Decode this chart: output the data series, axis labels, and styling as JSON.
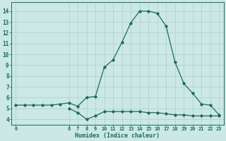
{
  "xlabel": "Humidex (Indice chaleur)",
  "ylabel": "",
  "bg_color": "#cce8e4",
  "line_color": "#1a6b60",
  "grid_color": "#afd4cf",
  "x_ticks": [
    0,
    6,
    7,
    8,
    9,
    10,
    11,
    12,
    13,
    14,
    15,
    16,
    17,
    18,
    19,
    20,
    21,
    22,
    23
  ],
  "y_ticks": [
    4,
    5,
    6,
    7,
    8,
    9,
    10,
    11,
    12,
    13,
    14
  ],
  "xlim": [
    -0.5,
    23.5
  ],
  "ylim": [
    3.5,
    14.8
  ],
  "line1_x": [
    0,
    1,
    2,
    3,
    4,
    5,
    6,
    7,
    8,
    9,
    10,
    11,
    12,
    13,
    14,
    15,
    16,
    17,
    18,
    19,
    20,
    21,
    22,
    23
  ],
  "line1_y": [
    5.3,
    5.3,
    5.3,
    5.3,
    5.3,
    5.4,
    5.5,
    5.2,
    6.0,
    6.1,
    8.8,
    9.5,
    11.1,
    12.9,
    14.0,
    14.0,
    13.8,
    12.6,
    9.3,
    7.3,
    6.4,
    5.4,
    5.3,
    4.4
  ],
  "line2_x": [
    6,
    7,
    8,
    9,
    10,
    11,
    12,
    13,
    14,
    15,
    16,
    17,
    18,
    19,
    20,
    21,
    22,
    23
  ],
  "line2_y": [
    5.0,
    4.6,
    4.0,
    4.3,
    4.7,
    4.7,
    4.7,
    4.7,
    4.7,
    4.6,
    4.6,
    4.5,
    4.4,
    4.4,
    4.3,
    4.3,
    4.3,
    4.3
  ]
}
